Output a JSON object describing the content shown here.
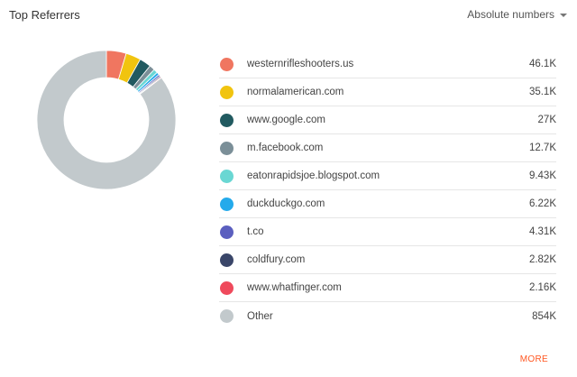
{
  "header": {
    "title": "Top Referrers",
    "metric_label": "Absolute numbers"
  },
  "footer": {
    "more_label": "MORE"
  },
  "chart_data": {
    "type": "pie",
    "title": "Top Referrers",
    "categories": [
      "westernrifleshooters.us",
      "normalamerican.com",
      "www.google.com",
      "m.facebook.com",
      "eatonrapidsjoe.blogspot.com",
      "duckduckgo.com",
      "t.co",
      "coldfury.com",
      "www.whatfinger.com",
      "Other"
    ],
    "values": [
      46100,
      35100,
      27000,
      12700,
      9430,
      6220,
      4310,
      2820,
      2160,
      854000
    ],
    "value_labels": [
      "46.1K",
      "35.1K",
      "27K",
      "12.7K",
      "9.43K",
      "6.22K",
      "4.31K",
      "2.82K",
      "2.16K",
      "854K"
    ],
    "colors": [
      "#f07660",
      "#f1c40f",
      "#215a60",
      "#7b8f98",
      "#6ad7d3",
      "#24aaeb",
      "#5b5fbf",
      "#3a4669",
      "#ef4a5c",
      "#c2c9cc"
    ],
    "donut": true,
    "legend": "right"
  }
}
